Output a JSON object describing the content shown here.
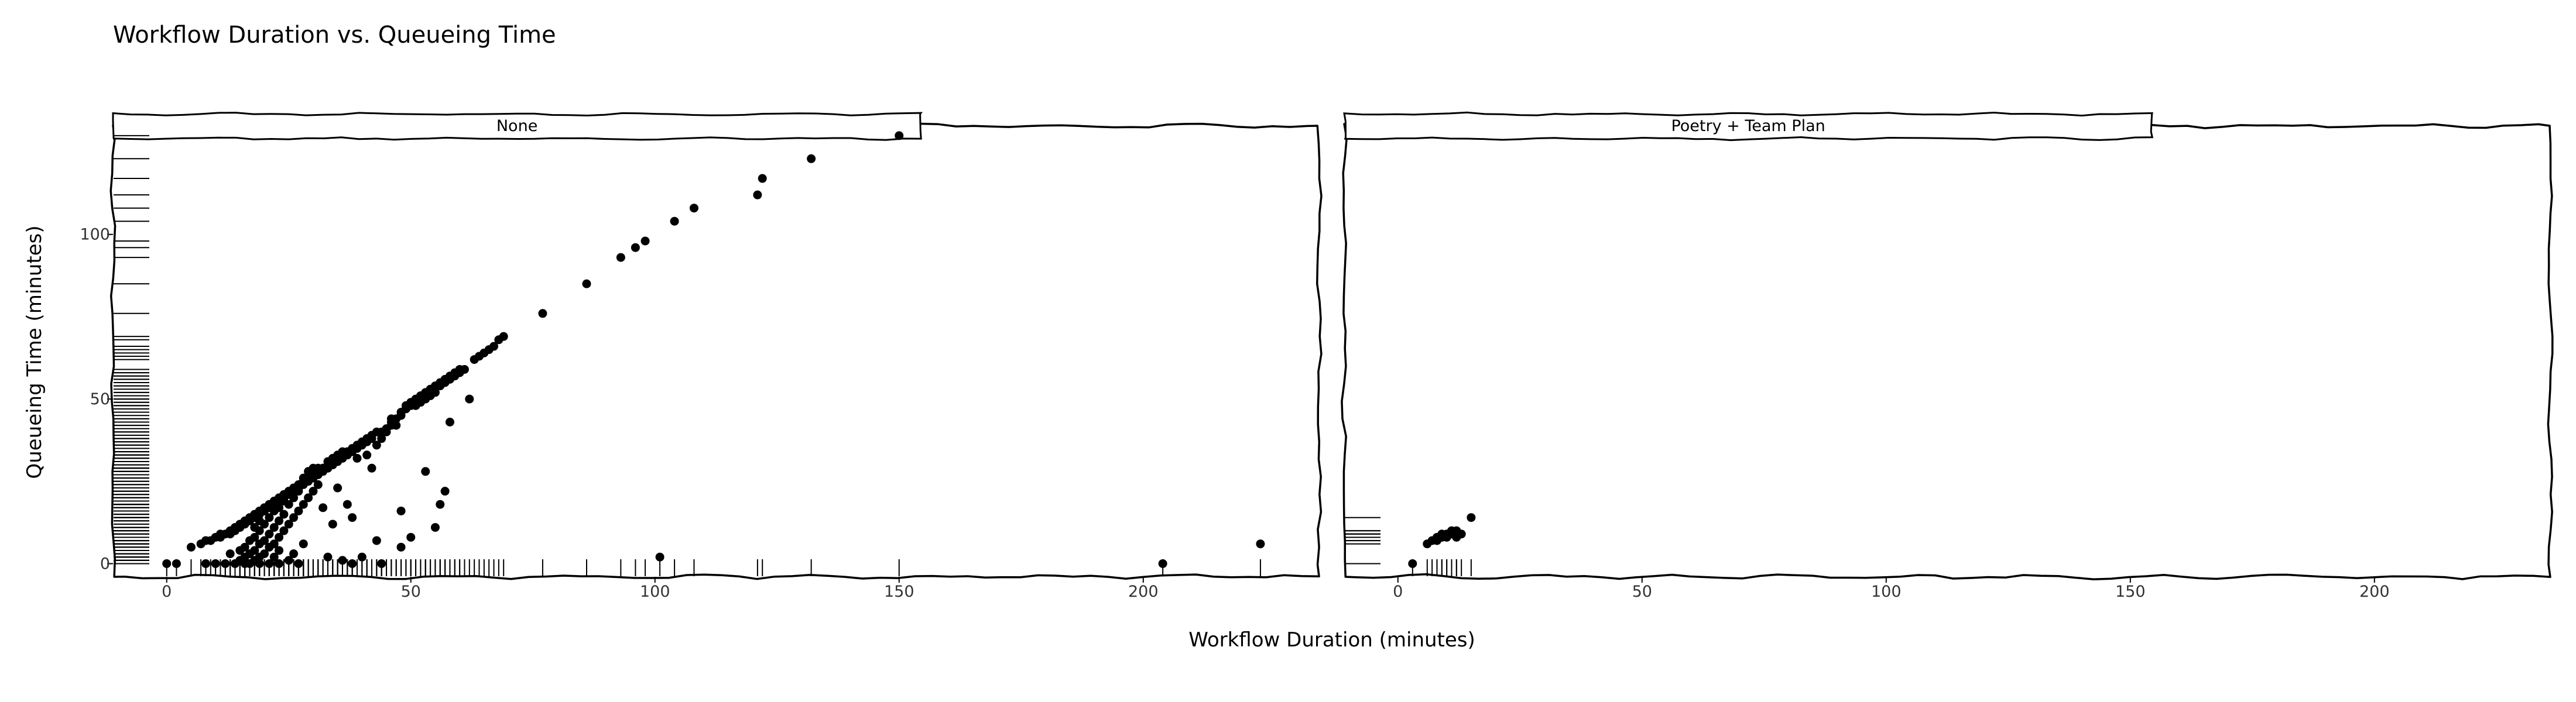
{
  "chart_data": {
    "type": "scatter",
    "title": "Workflow Duration vs. Queueing Time",
    "xlabel": "Workflow Duration (minutes)",
    "ylabel": "Queueing Time (minutes)",
    "xlim": [
      -11,
      236
    ],
    "ylim": [
      -4,
      133
    ],
    "x_ticks": [
      0,
      50,
      100,
      150,
      200
    ],
    "y_ticks": [
      0,
      50,
      100
    ],
    "grid": false,
    "rug": true,
    "panels": [
      {
        "facet": "None",
        "points": [
          [
            0,
            0
          ],
          [
            2,
            0
          ],
          [
            5,
            5
          ],
          [
            7,
            6
          ],
          [
            8,
            0
          ],
          [
            8,
            7
          ],
          [
            9,
            7
          ],
          [
            10,
            0
          ],
          [
            10,
            8
          ],
          [
            11,
            8
          ],
          [
            11,
            9
          ],
          [
            12,
            0
          ],
          [
            12,
            9
          ],
          [
            13,
            9
          ],
          [
            13,
            10
          ],
          [
            13,
            3
          ],
          [
            14,
            0
          ],
          [
            14,
            10
          ],
          [
            14,
            11
          ],
          [
            15,
            11
          ],
          [
            15,
            12
          ],
          [
            15,
            1
          ],
          [
            15,
            4
          ],
          [
            16,
            12
          ],
          [
            16,
            13
          ],
          [
            16,
            0
          ],
          [
            16,
            2
          ],
          [
            16,
            5
          ],
          [
            17,
            13
          ],
          [
            17,
            14
          ],
          [
            17,
            0
          ],
          [
            17,
            3
          ],
          [
            17,
            7
          ],
          [
            18,
            14
          ],
          [
            18,
            15
          ],
          [
            18,
            1
          ],
          [
            18,
            4
          ],
          [
            18,
            8
          ],
          [
            18,
            11
          ],
          [
            19,
            15
          ],
          [
            19,
            16
          ],
          [
            19,
            0
          ],
          [
            19,
            2
          ],
          [
            19,
            6
          ],
          [
            19,
            10
          ],
          [
            19,
            13
          ],
          [
            20,
            16
          ],
          [
            20,
            17
          ],
          [
            20,
            3
          ],
          [
            20,
            7
          ],
          [
            20,
            12
          ],
          [
            21,
            17
          ],
          [
            21,
            18
          ],
          [
            21,
            0
          ],
          [
            21,
            5
          ],
          [
            21,
            9
          ],
          [
            21,
            14
          ],
          [
            22,
            18
          ],
          [
            22,
            19
          ],
          [
            22,
            2
          ],
          [
            22,
            6
          ],
          [
            22,
            11
          ],
          [
            22,
            16
          ],
          [
            23,
            19
          ],
          [
            23,
            20
          ],
          [
            23,
            0
          ],
          [
            23,
            4
          ],
          [
            23,
            8
          ],
          [
            23,
            13
          ],
          [
            23,
            17
          ],
          [
            24,
            20
          ],
          [
            24,
            21
          ],
          [
            24,
            10
          ],
          [
            24,
            15
          ],
          [
            24,
            19
          ],
          [
            25,
            21
          ],
          [
            25,
            22
          ],
          [
            25,
            1
          ],
          [
            25,
            12
          ],
          [
            25,
            18
          ],
          [
            26,
            22
          ],
          [
            26,
            23
          ],
          [
            26,
            3
          ],
          [
            26,
            14
          ],
          [
            26,
            20
          ],
          [
            27,
            23
          ],
          [
            27,
            24
          ],
          [
            27,
            0
          ],
          [
            27,
            16
          ],
          [
            27,
            22
          ],
          [
            28,
            24
          ],
          [
            28,
            25
          ],
          [
            28,
            6
          ],
          [
            28,
            18
          ],
          [
            28,
            26
          ],
          [
            29,
            25
          ],
          [
            29,
            26
          ],
          [
            29,
            20
          ],
          [
            29,
            28
          ],
          [
            30,
            26
          ],
          [
            30,
            27
          ],
          [
            30,
            29
          ],
          [
            30,
            22
          ],
          [
            31,
            27
          ],
          [
            31,
            28
          ],
          [
            31,
            29
          ],
          [
            31,
            24
          ],
          [
            32,
            28
          ],
          [
            32,
            29
          ],
          [
            32,
            17
          ],
          [
            33,
            29
          ],
          [
            33,
            30
          ],
          [
            33,
            31
          ],
          [
            33,
            2
          ],
          [
            34,
            30
          ],
          [
            34,
            31
          ],
          [
            34,
            32
          ],
          [
            34,
            12
          ],
          [
            35,
            31
          ],
          [
            35,
            32
          ],
          [
            35,
            33
          ],
          [
            35,
            23
          ],
          [
            36,
            32
          ],
          [
            36,
            33
          ],
          [
            36,
            34
          ],
          [
            36,
            1
          ],
          [
            37,
            33
          ],
          [
            37,
            34
          ],
          [
            37,
            18
          ],
          [
            38,
            34
          ],
          [
            38,
            35
          ],
          [
            38,
            0
          ],
          [
            38,
            14
          ],
          [
            39,
            35
          ],
          [
            39,
            36
          ],
          [
            39,
            32
          ],
          [
            40,
            36
          ],
          [
            40,
            37
          ],
          [
            40,
            2
          ],
          [
            41,
            37
          ],
          [
            41,
            38
          ],
          [
            41,
            33
          ],
          [
            42,
            38
          ],
          [
            42,
            39
          ],
          [
            42,
            29
          ],
          [
            43,
            36
          ],
          [
            43,
            40
          ],
          [
            43,
            7
          ],
          [
            44,
            38
          ],
          [
            44,
            40
          ],
          [
            44,
            0
          ],
          [
            45,
            40
          ],
          [
            45,
            41
          ],
          [
            46,
            43
          ],
          [
            46,
            44
          ],
          [
            46,
            42
          ],
          [
            47,
            42
          ],
          [
            47,
            44
          ],
          [
            48,
            45
          ],
          [
            48,
            46
          ],
          [
            48,
            5
          ],
          [
            48,
            16
          ],
          [
            49,
            47
          ],
          [
            49,
            48
          ],
          [
            50,
            48
          ],
          [
            50,
            49
          ],
          [
            50,
            8
          ],
          [
            51,
            48
          ],
          [
            51,
            50
          ],
          [
            52,
            49
          ],
          [
            52,
            51
          ],
          [
            53,
            50
          ],
          [
            53,
            52
          ],
          [
            53,
            28
          ],
          [
            54,
            51
          ],
          [
            54,
            53
          ],
          [
            55,
            52
          ],
          [
            55,
            54
          ],
          [
            55,
            11
          ],
          [
            56,
            54
          ],
          [
            56,
            55
          ],
          [
            56,
            18
          ],
          [
            57,
            55
          ],
          [
            57,
            56
          ],
          [
            57,
            22
          ],
          [
            58,
            43
          ],
          [
            58,
            56
          ],
          [
            58,
            57
          ],
          [
            59,
            57
          ],
          [
            59,
            58
          ],
          [
            60,
            58
          ],
          [
            60,
            59
          ],
          [
            61,
            59
          ],
          [
            62,
            50
          ],
          [
            63,
            62
          ],
          [
            64,
            63
          ],
          [
            65,
            64
          ],
          [
            66,
            65
          ],
          [
            67,
            66
          ],
          [
            68,
            68
          ],
          [
            69,
            69
          ],
          [
            77,
            76
          ],
          [
            86,
            85
          ],
          [
            93,
            93
          ],
          [
            96,
            96
          ],
          [
            98,
            98
          ],
          [
            101,
            2
          ],
          [
            104,
            104
          ],
          [
            108,
            108
          ],
          [
            121,
            112
          ],
          [
            122,
            117
          ],
          [
            132,
            123
          ],
          [
            150,
            130
          ],
          [
            204,
            0
          ],
          [
            224,
            6
          ]
        ]
      },
      {
        "facet": "Poetry + Team Plan",
        "points": [
          [
            3,
            0
          ],
          [
            6,
            6
          ],
          [
            7,
            7
          ],
          [
            8,
            7
          ],
          [
            8,
            8
          ],
          [
            9,
            8
          ],
          [
            9,
            9
          ],
          [
            10,
            9
          ],
          [
            10,
            8
          ],
          [
            11,
            10
          ],
          [
            11,
            9
          ],
          [
            12,
            10
          ],
          [
            12,
            8
          ],
          [
            13,
            9
          ],
          [
            15,
            14
          ]
        ]
      }
    ]
  }
}
